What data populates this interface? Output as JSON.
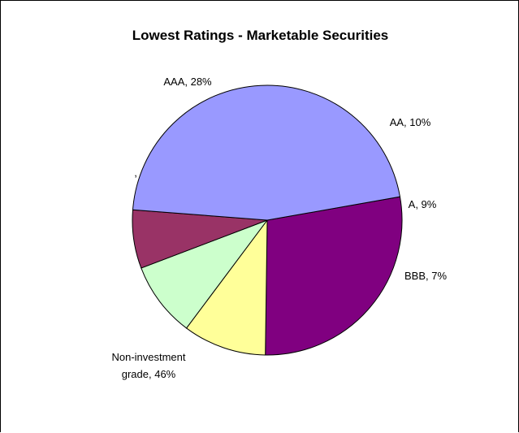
{
  "chart_data": {
    "type": "pie",
    "title": "Lowest Ratings - Marketable Securities",
    "slices": [
      {
        "label": "AAA",
        "percent": 28,
        "color": "#800080",
        "label_text": [
          "AAA, 28%"
        ]
      },
      {
        "label": "AA",
        "percent": 10,
        "color": "#FFFF99",
        "label_text": [
          "AA, 10%"
        ]
      },
      {
        "label": "A",
        "percent": 9,
        "color": "#CCFFCC",
        "label_text": [
          "A, 9%"
        ]
      },
      {
        "label": "BBB",
        "percent": 7,
        "color": "#993366",
        "label_text": [
          "BBB, 7%"
        ]
      },
      {
        "label": "Non-investment grade",
        "percent": 46,
        "color": "#9999FF",
        "label_text": [
          "Non-investment",
          "grade, 46%"
        ]
      },
      {
        "label": "",
        "percent": 0,
        "color": "#FFFFFF",
        "label_text": [
          ","
        ]
      }
    ],
    "legend": "none"
  }
}
